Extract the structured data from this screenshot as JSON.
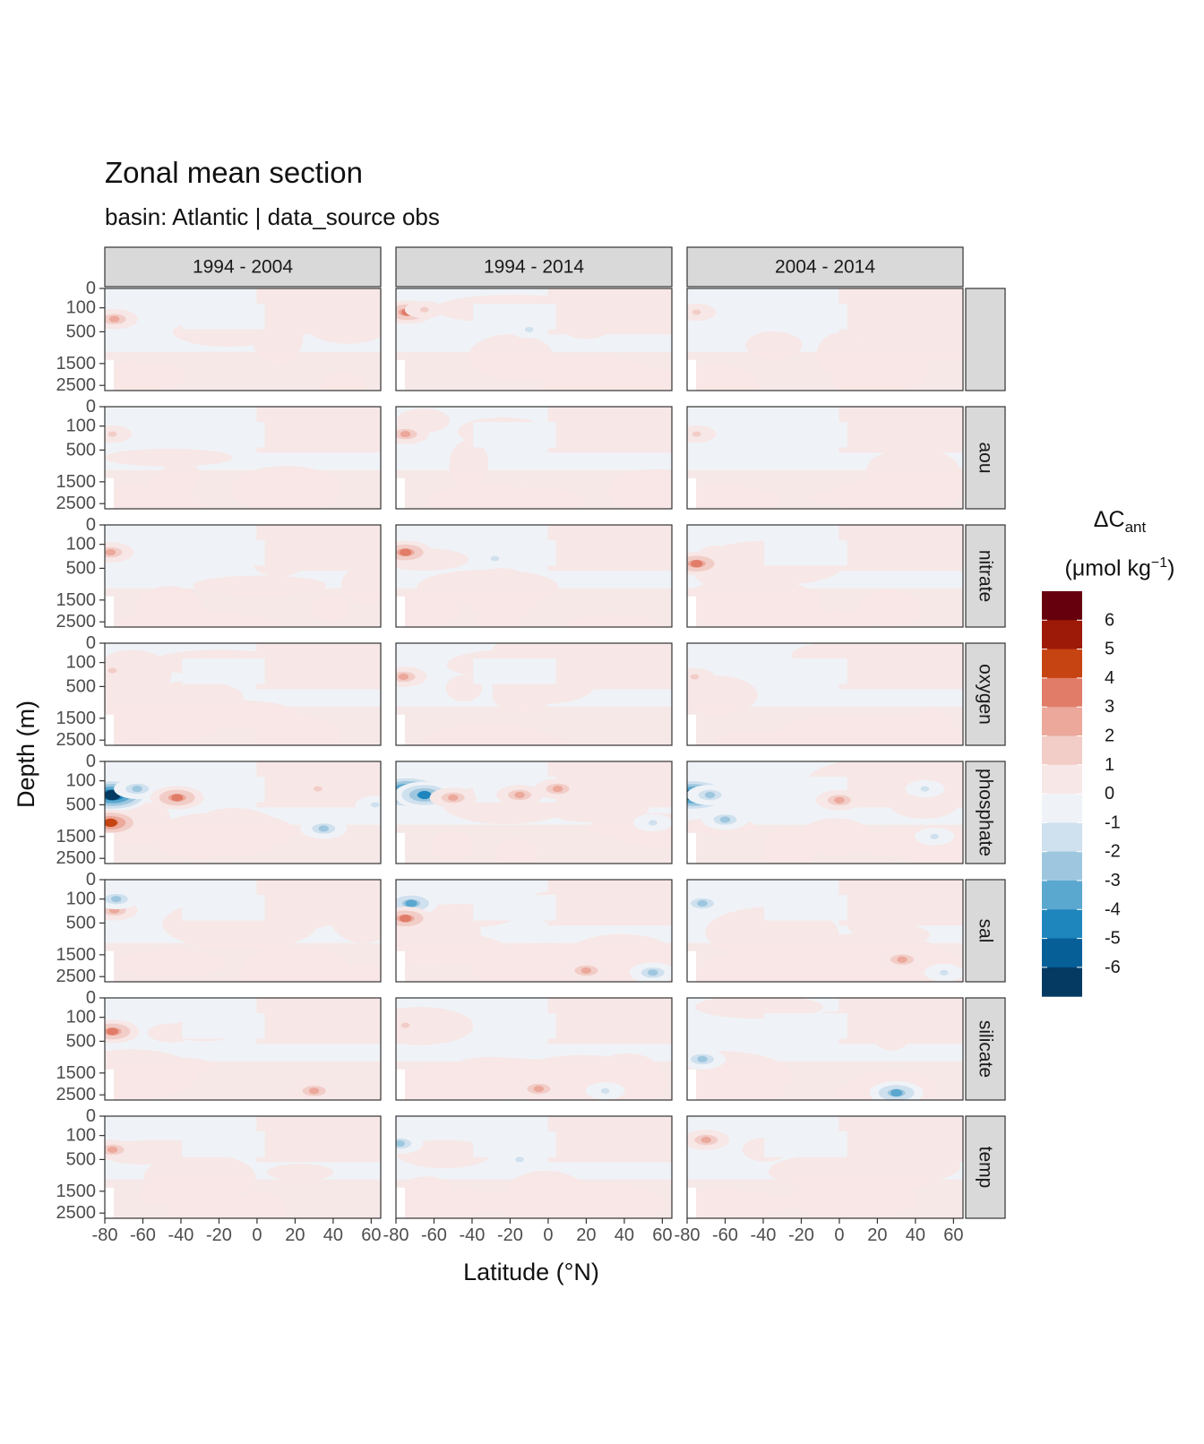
{
  "title": "Zonal mean section",
  "subtitle": "basin: Atlantic | data_source obs",
  "legend": {
    "title_main": "ΔC",
    "title_sub": "ant",
    "unit_prefix": "(μmol kg",
    "unit_sup": "−1",
    "unit_suffix": ")",
    "labels": [
      "6",
      "5",
      "4",
      "3",
      "2",
      "1",
      "0",
      "-1",
      "-2",
      "-3",
      "-4",
      "-5",
      "-6"
    ],
    "colors": [
      "#67000d",
      "#9e1a08",
      "#c64412",
      "#e07c68",
      "#eba89b",
      "#f2cdc7",
      "#f7e7e6",
      "#eff3f7",
      "#cfe0ee",
      "#9ec7df",
      "#5aa7cf",
      "#1e86bd",
      "#075f98",
      "#053a63"
    ]
  },
  "chart_data": {
    "type": "heatmap",
    "xlabel": "Latitude (°N)",
    "ylabel": "Depth (m)",
    "x_ticks": [
      -80,
      -60,
      -40,
      -20,
      0,
      20,
      40,
      60
    ],
    "y_ticks": [
      0,
      100,
      500,
      1500,
      2500
    ],
    "xlim": [
      -80,
      65
    ],
    "ylim": [
      3000,
      0
    ],
    "column_facets": [
      "1994 - 2004",
      "1994 - 2014",
      "2004 - 2014"
    ],
    "row_facets": [
      "",
      "aou",
      "nitrate",
      "oxygen",
      "phosphate",
      "sal",
      "silicate",
      "temp"
    ],
    "color_levels": [
      -6,
      -5,
      -4,
      -3,
      -2,
      -1,
      0,
      1,
      2,
      3,
      4,
      5,
      6
    ],
    "background_pattern": "alternating bands of 0 to 1 and -1 to 0",
    "features": [
      {
        "row": 0,
        "col": 0,
        "lat": -75,
        "depth": 250,
        "value": 2.5
      },
      {
        "row": 0,
        "col": 1,
        "lat": -74,
        "depth": 150,
        "value": 3.5
      },
      {
        "row": 0,
        "col": 1,
        "lat": -65,
        "depth": 120,
        "value": 1.5
      },
      {
        "row": 0,
        "col": 1,
        "lat": -10,
        "depth": 450,
        "value": -1.5
      },
      {
        "row": 0,
        "col": 2,
        "lat": -75,
        "depth": 150,
        "value": 1.5
      },
      {
        "row": 1,
        "col": 0,
        "lat": -76,
        "depth": 200,
        "value": 1.5
      },
      {
        "row": 1,
        "col": 1,
        "lat": -75,
        "depth": 200,
        "value": 2.5
      },
      {
        "row": 1,
        "col": 2,
        "lat": -75,
        "depth": 200,
        "value": 1.5
      },
      {
        "row": 2,
        "col": 0,
        "lat": -77,
        "depth": 200,
        "value": 2.5
      },
      {
        "row": 2,
        "col": 1,
        "lat": -75,
        "depth": 200,
        "value": 3.5
      },
      {
        "row": 2,
        "col": 1,
        "lat": -28,
        "depth": 300,
        "value": -1.5
      },
      {
        "row": 2,
        "col": 2,
        "lat": -75,
        "depth": 400,
        "value": 3.5
      },
      {
        "row": 3,
        "col": 0,
        "lat": -76,
        "depth": 200,
        "value": 1.5
      },
      {
        "row": 3,
        "col": 1,
        "lat": -76,
        "depth": 300,
        "value": 2.5
      },
      {
        "row": 3,
        "col": 2,
        "lat": -76,
        "depth": 300,
        "value": 1.5
      },
      {
        "row": 4,
        "col": 0,
        "lat": -76,
        "depth": 300,
        "value": -6.5
      },
      {
        "row": 4,
        "col": 0,
        "lat": -63,
        "depth": 200,
        "value": -2.5
      },
      {
        "row": 4,
        "col": 0,
        "lat": -77,
        "depth": 1000,
        "value": 4.5
      },
      {
        "row": 4,
        "col": 0,
        "lat": -42,
        "depth": 350,
        "value": 3.5
      },
      {
        "row": 4,
        "col": 0,
        "lat": 32,
        "depth": 200,
        "value": 1.5
      },
      {
        "row": 4,
        "col": 0,
        "lat": 35,
        "depth": 1200,
        "value": -2.5
      },
      {
        "row": 4,
        "col": 0,
        "lat": 62,
        "depth": 500,
        "value": -1.5
      },
      {
        "row": 4,
        "col": 1,
        "lat": -74,
        "depth": 250,
        "value": -6.5
      },
      {
        "row": 4,
        "col": 1,
        "lat": -65,
        "depth": 300,
        "value": -4.5
      },
      {
        "row": 4,
        "col": 1,
        "lat": -50,
        "depth": 350,
        "value": 2.5
      },
      {
        "row": 4,
        "col": 1,
        "lat": -15,
        "depth": 300,
        "value": 2.5
      },
      {
        "row": 4,
        "col": 1,
        "lat": 5,
        "depth": 200,
        "value": 2.5
      },
      {
        "row": 4,
        "col": 1,
        "lat": 55,
        "depth": 1000,
        "value": -1.5
      },
      {
        "row": 4,
        "col": 2,
        "lat": -77,
        "depth": 300,
        "value": -6.5
      },
      {
        "row": 4,
        "col": 2,
        "lat": -68,
        "depth": 300,
        "value": -2.5
      },
      {
        "row": 4,
        "col": 2,
        "lat": -60,
        "depth": 900,
        "value": -2.5
      },
      {
        "row": 4,
        "col": 2,
        "lat": 0,
        "depth": 400,
        "value": 2.5
      },
      {
        "row": 4,
        "col": 2,
        "lat": 45,
        "depth": 200,
        "value": -1.5
      },
      {
        "row": 4,
        "col": 2,
        "lat": 50,
        "depth": 1500,
        "value": -1.5
      },
      {
        "row": 5,
        "col": 0,
        "lat": -75,
        "depth": 250,
        "value": 2.5
      },
      {
        "row": 5,
        "col": 0,
        "lat": -74,
        "depth": 100,
        "value": -2.5
      },
      {
        "row": 5,
        "col": 1,
        "lat": -72,
        "depth": 150,
        "value": -3.5
      },
      {
        "row": 5,
        "col": 1,
        "lat": -75,
        "depth": 400,
        "value": 3.5
      },
      {
        "row": 5,
        "col": 1,
        "lat": 20,
        "depth": 2200,
        "value": 2.5
      },
      {
        "row": 5,
        "col": 1,
        "lat": 55,
        "depth": 2300,
        "value": -2.5
      },
      {
        "row": 5,
        "col": 2,
        "lat": -72,
        "depth": 150,
        "value": -2.5
      },
      {
        "row": 5,
        "col": 2,
        "lat": 33,
        "depth": 1700,
        "value": 2.5
      },
      {
        "row": 5,
        "col": 2,
        "lat": 55,
        "depth": 2300,
        "value": -1.5
      },
      {
        "row": 6,
        "col": 0,
        "lat": -76,
        "depth": 300,
        "value": 3.5
      },
      {
        "row": 6,
        "col": 0,
        "lat": 30,
        "depth": 2300,
        "value": 2.5
      },
      {
        "row": 6,
        "col": 1,
        "lat": -75,
        "depth": 200,
        "value": 1.5
      },
      {
        "row": 6,
        "col": 1,
        "lat": -5,
        "depth": 2200,
        "value": 2.5
      },
      {
        "row": 6,
        "col": 1,
        "lat": 30,
        "depth": 2300,
        "value": -1.5
      },
      {
        "row": 6,
        "col": 2,
        "lat": 30,
        "depth": 2400,
        "value": -3.5
      },
      {
        "row": 6,
        "col": 2,
        "lat": -72,
        "depth": 1000,
        "value": -2.5
      },
      {
        "row": 7,
        "col": 0,
        "lat": -76,
        "depth": 300,
        "value": 2.5
      },
      {
        "row": 7,
        "col": 1,
        "lat": -78,
        "depth": 200,
        "value": -2.5
      },
      {
        "row": 7,
        "col": 1,
        "lat": -15,
        "depth": 500,
        "value": -1.5
      },
      {
        "row": 7,
        "col": 2,
        "lat": -70,
        "depth": 150,
        "value": 2.5
      }
    ]
  }
}
